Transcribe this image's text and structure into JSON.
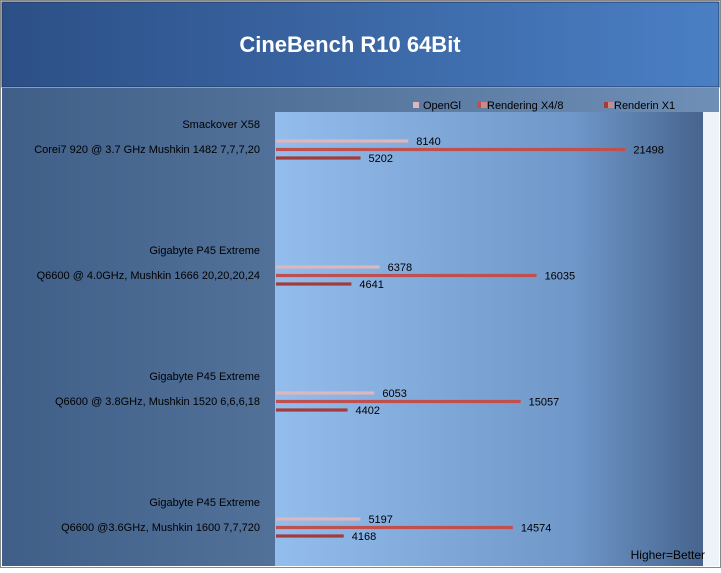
{
  "chart_data": {
    "type": "bar",
    "orientation": "horizontal",
    "title": "CineBench R10 64Bit",
    "note": "Higher=Better",
    "legend_position": "top-right",
    "categories": [
      {
        "line1": "Smackover X58",
        "line2": "Corei7 920 @ 3.7 GHz Mushkin 1482 7,7,7,20"
      },
      {
        "line1": "Gigabyte P45 Extreme",
        "line2": "Q6600 @ 4.0GHz, Mushkin 1666 20,20,20,24"
      },
      {
        "line1": "Gigabyte P45 Extreme",
        "line2": "Q6600 @ 3.8GHz, Mushkin 1520 6,6,6,18"
      },
      {
        "line1": "Gigabyte P45 Extreme",
        "line2": "Q6600 @3.6GHz, Mushkin 1600 7,7,720"
      }
    ],
    "series": [
      {
        "name": "OpenGl",
        "color": "#ddb7bd",
        "values": [
          8140,
          6378,
          6053,
          5197
        ]
      },
      {
        "name": "Rendering X4/8",
        "color": "#c0504d",
        "values": [
          21498,
          16035,
          15057,
          14574
        ]
      },
      {
        "name": "Renderin X1",
        "color": "#a33b3b",
        "values": [
          5202,
          4641,
          4402,
          4168
        ]
      }
    ],
    "xlim": [
      0,
      24000
    ],
    "grid": false
  }
}
